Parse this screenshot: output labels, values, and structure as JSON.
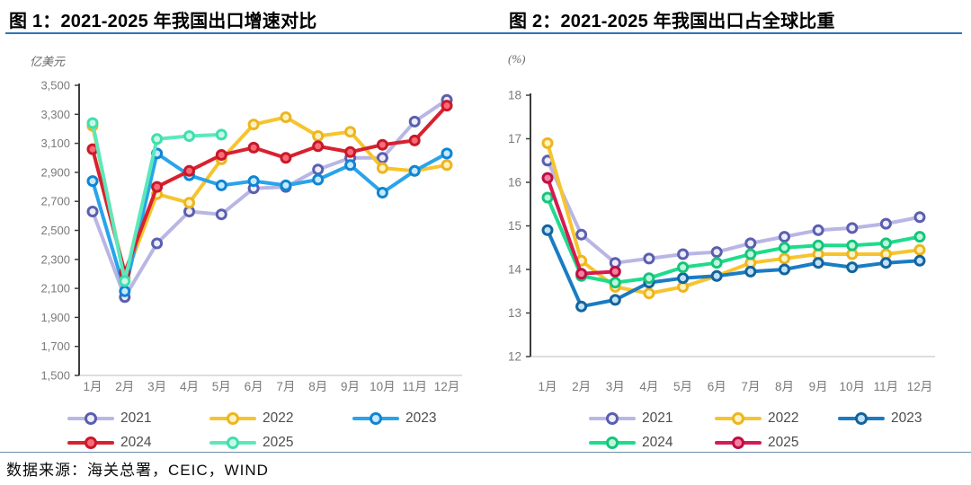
{
  "charts": [
    {
      "title": "图 1：2021-2025 年我国出口增速对比",
      "unit_label": "亿美元",
      "chart_data": {
        "type": "line",
        "categories": [
          "1月",
          "2月",
          "3月",
          "4月",
          "5月",
          "6月",
          "7月",
          "8月",
          "9月",
          "10月",
          "11月",
          "12月"
        ],
        "xlabel": "",
        "ylabel": "亿美元",
        "ylim": [
          1500,
          3500
        ],
        "ytick_step": 200,
        "ytick_format": "comma",
        "grid": false,
        "legend_position": "bottom",
        "series": [
          {
            "name": "2021",
            "color": "#b9b6e5",
            "marker_ring": "#5a5fae",
            "marker_fill": "#eeedfa",
            "values": [
              2630,
              2040,
              2410,
              2630,
              2610,
              2790,
              2800,
              2920,
              3000,
              3000,
              3250,
              3400
            ]
          },
          {
            "name": "2022",
            "color": "#f6c42e",
            "marker_ring": "#edb51f",
            "marker_fill": "#fdf2c3",
            "values": [
              3220,
              2170,
              2750,
              2690,
              2990,
              3230,
              3280,
              3150,
              3180,
              2930,
              2910,
              2950
            ]
          },
          {
            "name": "2023",
            "color": "#29a4ea",
            "marker_ring": "#0f85d3",
            "marker_fill": "#c6e9fc",
            "values": [
              2840,
              2080,
              3030,
              2880,
              2810,
              2840,
              2810,
              2850,
              2950,
              2760,
              2910,
              3030
            ]
          },
          {
            "name": "2024",
            "color": "#d8212f",
            "marker_ring": "#c81928",
            "marker_fill": "#fa6a79",
            "values": [
              3060,
              2210,
              2800,
              2910,
              3020,
              3070,
              3000,
              3080,
              3040,
              3090,
              3120,
              3360
            ]
          },
          {
            "name": "2025",
            "color": "#5ce8bb",
            "marker_ring": "#3fdfae",
            "marker_fill": "#c9f9e7",
            "values": [
              3240,
              2150,
              3130,
              3150,
              3160
            ]
          }
        ]
      }
    },
    {
      "title": "图 2：2021-2025 年我国出口占全球比重",
      "unit_label": "(%)",
      "chart_data": {
        "type": "line",
        "categories": [
          "1月",
          "2月",
          "3月",
          "4月",
          "5月",
          "6月",
          "7月",
          "8月",
          "9月",
          "10月",
          "11月",
          "12月"
        ],
        "xlabel": "",
        "ylabel": "%",
        "ylim": [
          12,
          18
        ],
        "ytick_step": 1,
        "ytick_format": "plain",
        "grid": false,
        "legend_position": "bottom",
        "series": [
          {
            "name": "2021",
            "color": "#b9b6e5",
            "marker_ring": "#5a5fae",
            "marker_fill": "#eeedfa",
            "values": [
              16.5,
              14.8,
              14.15,
              14.25,
              14.35,
              14.4,
              14.6,
              14.75,
              14.9,
              14.95,
              15.05,
              15.2
            ]
          },
          {
            "name": "2022",
            "color": "#f6c42e",
            "marker_ring": "#edb51f",
            "marker_fill": "#fdf2c3",
            "values": [
              16.9,
              14.2,
              13.6,
              13.45,
              13.6,
              13.85,
              14.15,
              14.25,
              14.35,
              14.35,
              14.35,
              14.45
            ]
          },
          {
            "name": "2023",
            "color": "#1a7cc3",
            "marker_ring": "#15639c",
            "marker_fill": "#bfe2f8",
            "values": [
              14.9,
              13.15,
              13.3,
              13.7,
              13.8,
              13.85,
              13.95,
              14.0,
              14.15,
              14.05,
              14.15,
              14.2
            ]
          },
          {
            "name": "2024",
            "color": "#1edc8c",
            "marker_ring": "#17c47b",
            "marker_fill": "#bff7dd",
            "values": [
              15.65,
              13.85,
              13.7,
              13.8,
              14.05,
              14.15,
              14.35,
              14.5,
              14.55,
              14.55,
              14.6,
              14.75
            ]
          },
          {
            "name": "2025",
            "color": "#d61a52",
            "marker_ring": "#bd0f43",
            "marker_fill": "#f780a2",
            "values": [
              16.1,
              13.9,
              13.95
            ]
          }
        ]
      }
    }
  ],
  "footer": {
    "source": "数据来源：海关总署，CEIC，WIND"
  },
  "colors": {
    "title_underline": "#2e75b5",
    "divider": "#6d8cab",
    "axis": "#3c3c3c",
    "tick_label": "#7a7a7a",
    "baseline": "#c9c9c9"
  }
}
